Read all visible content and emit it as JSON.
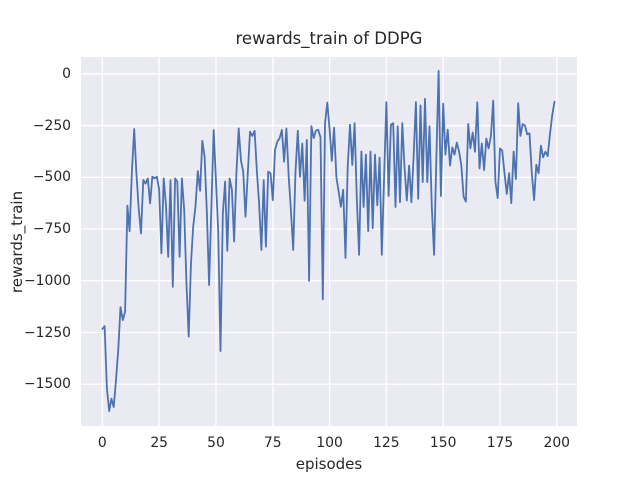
{
  "title": "rewards_train of DDPG",
  "xlabel": "episodes",
  "ylabel": "rewards_train",
  "colors": {
    "figure_background": "#ffffff",
    "plot_background": "#eaeaf2",
    "grid": "#ffffff",
    "line": "#4c72b0",
    "text": "#262626"
  },
  "chart_data": {
    "type": "line",
    "title": "rewards_train of DDPG",
    "xlabel": "episodes",
    "ylabel": "rewards_train",
    "grid": true,
    "legend": "none",
    "x_ticks": [
      0,
      25,
      50,
      75,
      100,
      125,
      150,
      175,
      200
    ],
    "y_ticks": [
      0,
      -250,
      -500,
      -750,
      -1000,
      -1250,
      -1500
    ],
    "xlim": [
      -9.4,
      208.9
    ],
    "ylim": [
      -1702,
      82
    ],
    "series": [
      {
        "name": "rewards_train",
        "color": "#4c72b0",
        "x_start": 0,
        "x_step": 1,
        "y": [
          -1233,
          -1219,
          -1520,
          -1630,
          -1570,
          -1610,
          -1480,
          -1330,
          -1127,
          -1190,
          -1150,
          -637,
          -760,
          -472,
          -266,
          -480,
          -650,
          -771,
          -512,
          -530,
          -505,
          -626,
          -497,
          -505,
          -497,
          -560,
          -867,
          -505,
          -636,
          -884,
          -513,
          -1029,
          -505,
          -520,
          -884,
          -505,
          -658,
          -1005,
          -1270,
          -914,
          -737,
          -640,
          -470,
          -565,
          -323,
          -400,
          -674,
          -1021,
          -640,
          -271,
          -520,
          -760,
          -1340,
          -680,
          -520,
          -855,
          -505,
          -560,
          -810,
          -480,
          -263,
          -420,
          -472,
          -690,
          -480,
          -279,
          -300,
          -275,
          -472,
          -626,
          -851,
          -513,
          -835,
          -472,
          -480,
          -610,
          -368,
          -327,
          -311,
          -271,
          -424,
          -263,
          -497,
          -658,
          -851,
          -472,
          -275,
          -497,
          -336,
          -613,
          -319,
          -1000,
          -252,
          -310,
          -274,
          -270,
          -306,
          -1090,
          -238,
          -139,
          -268,
          -420,
          -260,
          -500,
          -570,
          -642,
          -560,
          -890,
          -450,
          -246,
          -440,
          -238,
          -600,
          -875,
          -375,
          -643,
          -390,
          -760,
          -375,
          -745,
          -390,
          -635,
          -405,
          -875,
          -500,
          -136,
          -590,
          -246,
          -238,
          -643,
          -253,
          -620,
          -238,
          -450,
          -612,
          -443,
          -620,
          -400,
          -136,
          -604,
          -152,
          -523,
          -120,
          -523,
          -253,
          -643,
          -875,
          -400,
          15,
          -590,
          -144,
          -390,
          -269,
          -443,
          -355,
          -390,
          -332,
          -376,
          -440,
          -593,
          -617,
          -242,
          -360,
          -283,
          -376,
          -137,
          -457,
          -336,
          -465,
          -312,
          -360,
          -300,
          -129,
          -520,
          -600,
          -360,
          -370,
          -480,
          -580,
          -480,
          -625,
          -375,
          -508,
          -142,
          -300,
          -242,
          -250,
          -292,
          -287,
          -480,
          -610,
          -439,
          -480,
          -347,
          -403,
          -376,
          -397,
          -290,
          -200,
          -134
        ]
      }
    ]
  }
}
